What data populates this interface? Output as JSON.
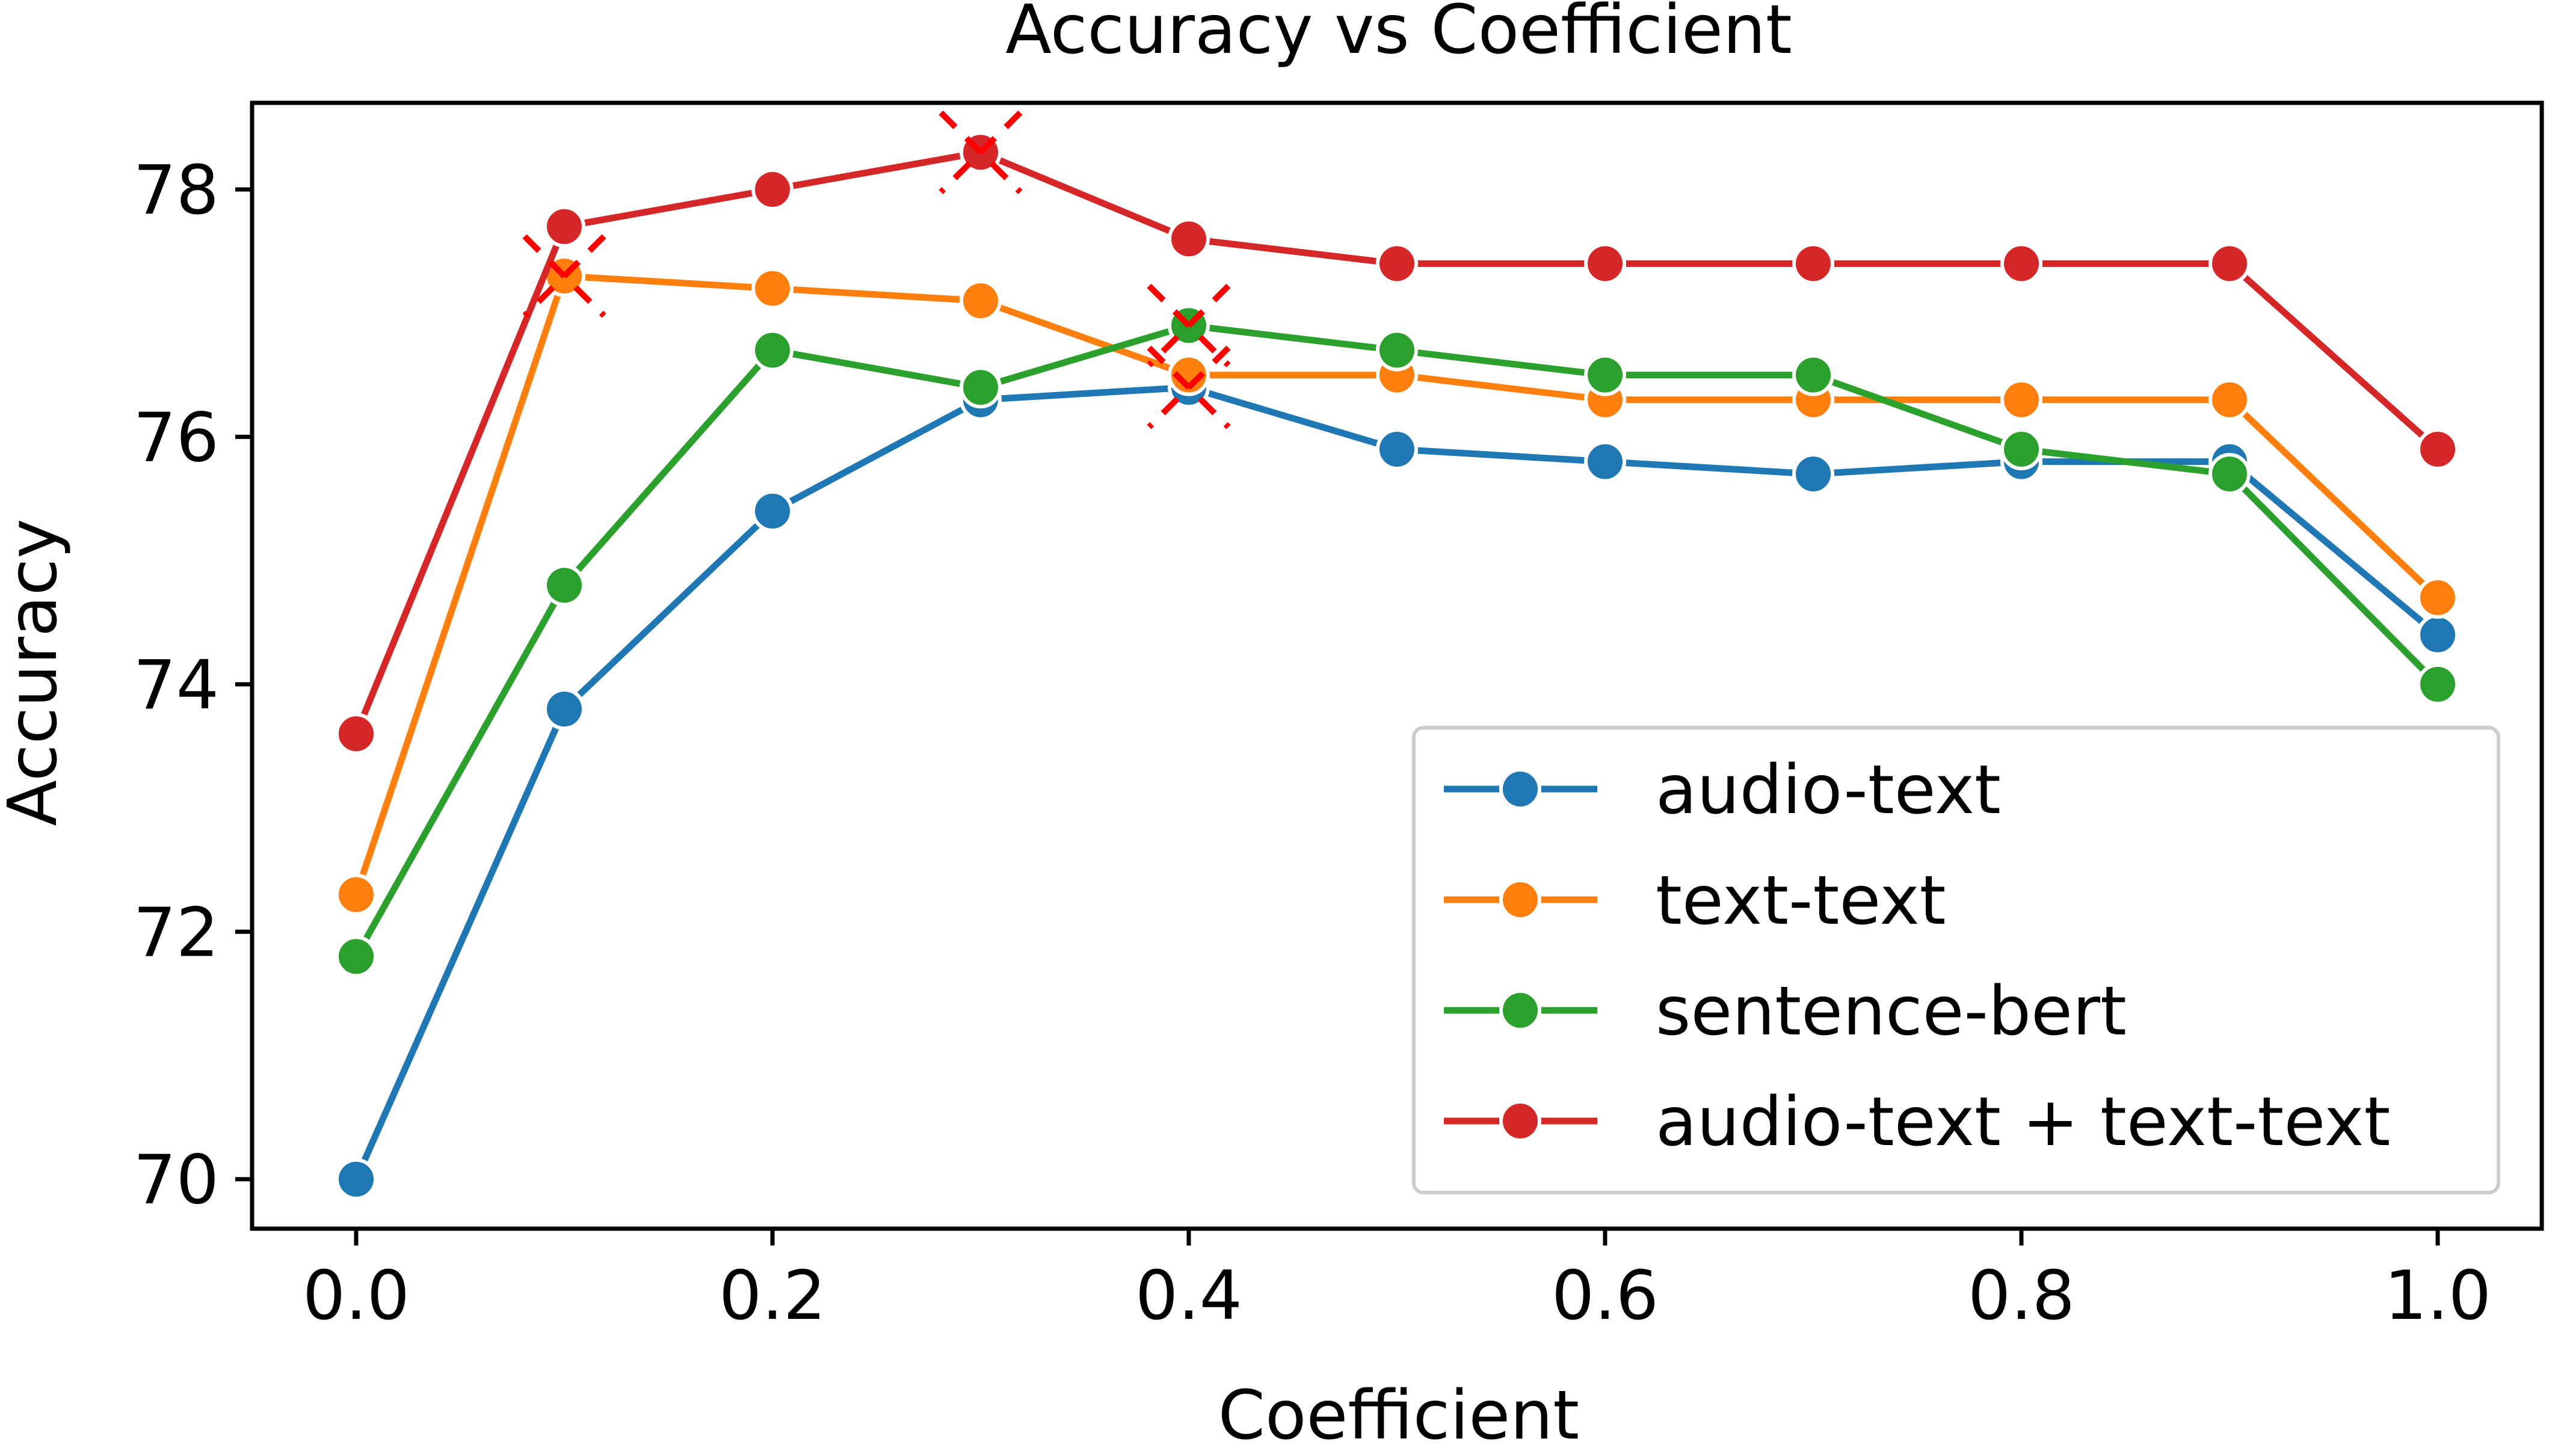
{
  "chart_data": {
    "type": "line",
    "title": "Accuracy vs Coefficient",
    "xlabel": "Coefficient",
    "ylabel": "Accuracy",
    "xlim": [
      -0.05,
      1.05
    ],
    "ylim": [
      69.6,
      78.7
    ],
    "xticks": [
      0.0,
      0.2,
      0.4,
      0.6,
      0.8,
      1.0
    ],
    "xtick_labels": [
      "0.0",
      "0.2",
      "0.4",
      "0.6",
      "0.8",
      "1.0"
    ],
    "yticks": [
      70,
      72,
      74,
      76,
      78
    ],
    "ytick_labels": [
      "70",
      "72",
      "74",
      "76",
      "78"
    ],
    "grid": false,
    "legend_position": "lower-right",
    "x": [
      0.0,
      0.1,
      0.2,
      0.3,
      0.4,
      0.5,
      0.6,
      0.7,
      0.8,
      0.9,
      1.0
    ],
    "series": [
      {
        "name": "audio-text",
        "color": "#1f77b4",
        "values": [
          70.0,
          73.8,
          75.4,
          76.3,
          76.4,
          75.9,
          75.8,
          75.7,
          75.8,
          75.8,
          74.4
        ]
      },
      {
        "name": "text-text",
        "color": "#ff7f0e",
        "values": [
          72.3,
          77.3,
          77.2,
          77.1,
          76.5,
          76.5,
          76.3,
          76.3,
          76.3,
          76.3,
          74.7
        ]
      },
      {
        "name": "sentence-bert",
        "color": "#2ca02c",
        "values": [
          71.8,
          74.8,
          76.7,
          76.4,
          76.9,
          76.7,
          76.5,
          76.5,
          75.9,
          75.7,
          74.0
        ]
      },
      {
        "name": "audio-text + text-text",
        "color": "#d62728",
        "values": [
          73.6,
          77.7,
          78.0,
          78.3,
          77.6,
          77.4,
          77.4,
          77.4,
          77.4,
          77.4,
          75.9
        ]
      }
    ],
    "annotations": [
      {
        "type": "cross-marker",
        "color": "#ff0000",
        "x": 0.1,
        "y": 77.3
      },
      {
        "type": "cross-marker",
        "color": "#ff0000",
        "x": 0.3,
        "y": 78.3
      },
      {
        "type": "cross-marker",
        "color": "#ff0000",
        "x": 0.4,
        "y": 76.9
      },
      {
        "type": "cross-marker",
        "color": "#ff0000",
        "x": 0.4,
        "y": 76.4
      }
    ]
  }
}
